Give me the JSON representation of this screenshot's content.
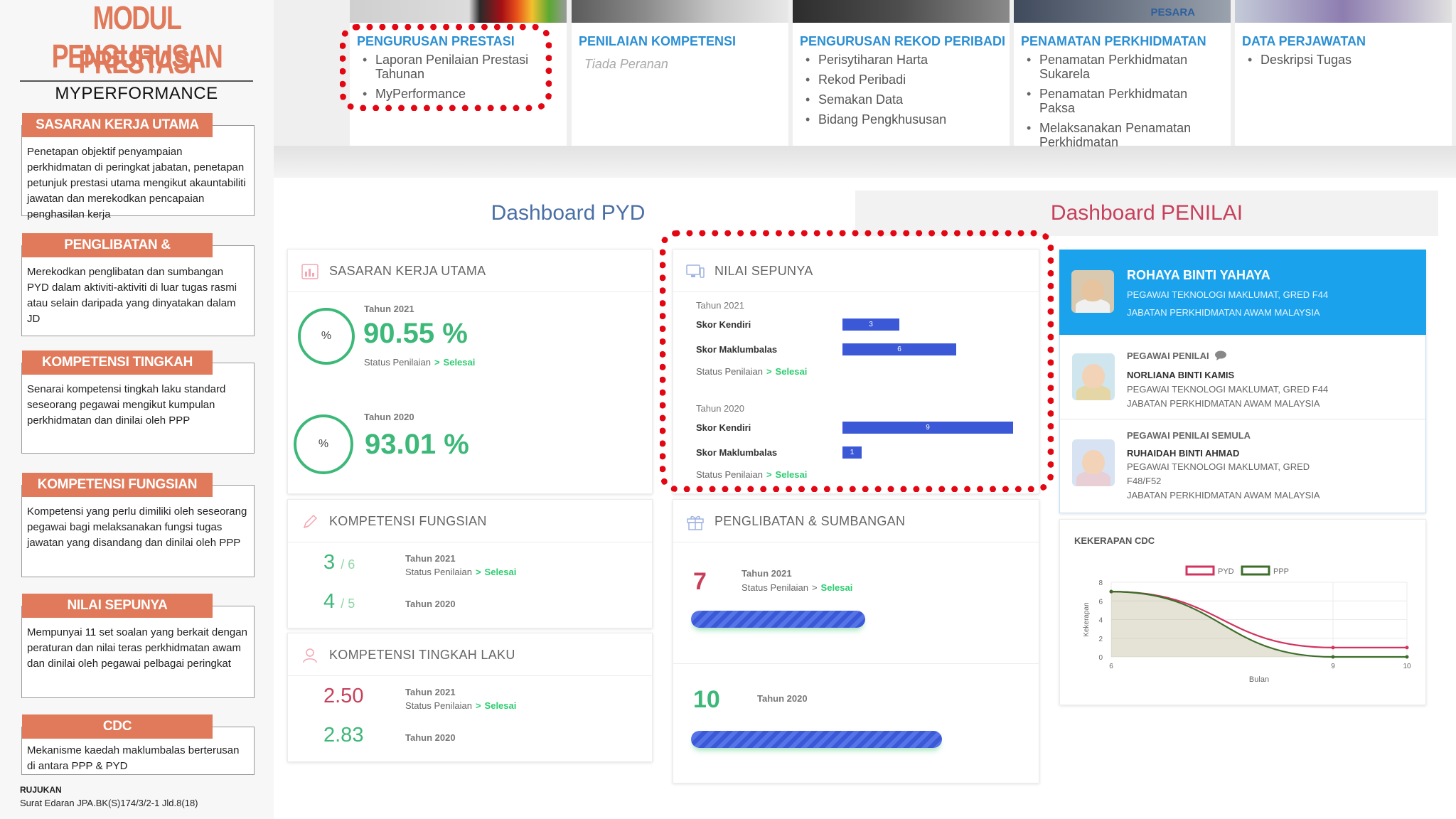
{
  "left": {
    "title_line1": "MODUL PENGURUSAN",
    "title_line2": "PRESTASI",
    "subtitle": "MYPERFORMANCE",
    "boxes": [
      {
        "heading": "SASARAN KERJA UTAMA (SKU)",
        "text": "Penetapan objektif penyampaian perkhidmatan di peringkat jabatan, penetapan petunjuk prestasi utama mengikut akauntabiliti jawatan dan merekodkan pencapaian penghasilan kerja"
      },
      {
        "heading": "PENGLIBATAN & SUMBANGAN",
        "text": "Merekodkan penglibatan dan sumbangan PYD dalam aktiviti-aktiviti di luar tugas rasmi atau selain daripada yang dinyatakan dalam JD"
      },
      {
        "heading": "KOMPETENSI TINGKAH LAKU",
        "text": "Senarai kompetensi tingkah laku standard seseorang pegawai mengikut kumpulan perkhidmatan dan dinilai oleh PPP"
      },
      {
        "heading": "KOMPETENSI FUNGSIAN",
        "text": "Kompetensi yang perlu dimiliki oleh seseorang pegawai bagi melaksanakan fungsi tugas jawatan yang disandang dan dinilai oleh PPP"
      },
      {
        "heading": "NILAI SEPUNYA",
        "text": "Mempunyai 11 set soalan yang berkait dengan peraturan dan nilai teras perkhidmatan awam dan dinilai oleh pegawai pelbagai peringkat"
      },
      {
        "heading": "CDC",
        "text": "Mekanisme kaedah maklumbalas berterusan di antara PPP & PYD"
      }
    ],
    "ref_label": "RUJUKAN",
    "ref_text": "Surat Edaran JPA.BK(S)174/3/2-1 Jld.8(18)"
  },
  "modules": [
    {
      "title": "PENGURUSAN PRESTASI",
      "items": [
        "Laporan Penilaian Prestasi Tahunan",
        "MyPerformance"
      ]
    },
    {
      "title": "PENILAIAN KOMPETENSI",
      "empty": "Tiada Peranan"
    },
    {
      "title": "PENGURUSAN REKOD PERIBADI",
      "items": [
        "Perisytiharan Harta",
        "Rekod Peribadi",
        "Semakan Data",
        "Bidang Pengkhususan"
      ]
    },
    {
      "title": "PENAMATAN PERKHIDMATAN",
      "img_text": "PESARA",
      "items": [
        "Penamatan Perkhidmatan Sukarela",
        "Penamatan Perkhidmatan Paksa",
        "Melaksanakan Penamatan Perkhidmatan"
      ]
    },
    {
      "title": "DATA PERJAWATAN",
      "items": [
        "Deskripsi Tugas"
      ]
    }
  ],
  "tabs": {
    "pyd": "Dashboard PYD",
    "penilai": "Dashboard PENILAI"
  },
  "common": {
    "status_label": "Status Penilaian",
    "status_done": "Selesai",
    "arrow": ">",
    "status_done_2": "Status Penilaian > Selesai"
  },
  "sku": {
    "title": "SASARAN KERJA UTAMA",
    "ring_symbol": "%",
    "y2021": {
      "year": "Tahun 2021",
      "value": "90.55 %"
    },
    "y2020": {
      "year": "Tahun 2020",
      "value": "93.01 %"
    }
  },
  "nilai": {
    "title": "NILAI SEPUNYA",
    "label_kendiri": "Skor Kendiri",
    "label_maklumbalas": "Skor Maklumbalas",
    "y2021": {
      "year": "Tahun 2021",
      "kendiri": 3,
      "maklumbalas": 6
    },
    "y2020": {
      "year": "Tahun 2020",
      "kendiri": 9,
      "maklumbalas": 1
    },
    "bar_max": 9
  },
  "fungsian": {
    "title": "KOMPETENSI FUNGSIAN",
    "y2021": {
      "year": "Tahun 2021",
      "score": "3",
      "total": "/ 6"
    },
    "y2020": {
      "year": "Tahun 2020",
      "score": "4",
      "total": "/ 5"
    }
  },
  "tingkah": {
    "title": "KOMPETENSI TINGKAH LAKU",
    "y2021": {
      "year": "Tahun 2021",
      "score": "2.50"
    },
    "y2020": {
      "year": "Tahun 2020",
      "score": "2.83"
    }
  },
  "penglibatan": {
    "title": "PENGLIBATAN & SUMBANGAN",
    "y2021": {
      "year": "Tahun 2021",
      "value": "7",
      "progress": 0.34
    },
    "y2020": {
      "year": "Tahun 2020",
      "value": "10",
      "progress": 0.49
    }
  },
  "profile": {
    "name": "ROHAYA BINTI YAHAYA",
    "position": "PEGAWAI TEKNOLOGI MAKLUMAT, GRED F44",
    "dept": "JABATAN PERKHIDMATAN AWAM MALAYSIA",
    "penilai_role": "PEGAWAI PENILAI",
    "penilai_name": "NORLIANA BINTI KAMIS",
    "penilai_position": "PEGAWAI TEKNOLOGI MAKLUMAT, GRED F44",
    "penilai_dept": "JABATAN PERKHIDMATAN AWAM MALAYSIA",
    "semula_role": "PEGAWAI PENILAI SEMULA",
    "semula_name": "RUHAIDAH BINTI AHMAD",
    "semula_position_1": "PEGAWAI TEKNOLOGI MAKLUMAT, GRED",
    "semula_position_2": "F48/F52",
    "semula_dept": "JABATAN PERKHIDMATAN AWAM MALAYSIA"
  },
  "chart_data": {
    "type": "line",
    "title": "KEKERAPAN CDC",
    "xlabel": "Bulan",
    "ylabel": "Kekerapan",
    "x": [
      6,
      9,
      10
    ],
    "x_ticks": [
      "6",
      "9",
      "10"
    ],
    "y_ticks": [
      "0",
      "2",
      "4",
      "6",
      "8"
    ],
    "ylim": [
      0,
      8
    ],
    "legend_position": "top",
    "series": [
      {
        "name": "PYD",
        "values": [
          7,
          1,
          1
        ],
        "color": "#d1355f"
      },
      {
        "name": "PPP",
        "values": [
          7,
          0,
          0
        ],
        "color": "#3c6e2a"
      }
    ]
  },
  "colors": {
    "accent_orange": "#e07a5a",
    "blue": "#1aa3ec",
    "green": "#3cb878",
    "red": "#c7405b",
    "bar_blue": "#3b59d6",
    "highlight_red": "#e30613"
  }
}
